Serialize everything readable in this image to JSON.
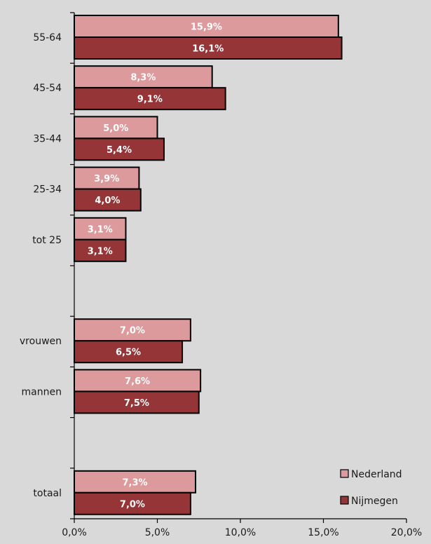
{
  "chart_data": {
    "type": "bar",
    "orientation": "horizontal",
    "categories": [
      "55-64",
      "45-54",
      "35-44",
      "25-34",
      "tot 25",
      "",
      "vrouwen",
      "mannen",
      "",
      "totaal"
    ],
    "series": [
      {
        "name": "Nederland",
        "color": "#dc9a9c",
        "values": [
          15.9,
          8.3,
          5.0,
          3.9,
          3.1,
          null,
          7.0,
          7.6,
          null,
          7.3
        ],
        "labels": [
          "15,9%",
          "8,3%",
          "5,0%",
          "3,9%",
          "3,1%",
          "",
          "7,0%",
          "7,6%",
          "",
          "7,3%"
        ]
      },
      {
        "name": "Nijmegen",
        "color": "#953537",
        "values": [
          16.1,
          9.1,
          5.4,
          4.0,
          3.1,
          null,
          6.5,
          7.5,
          null,
          7.0
        ],
        "labels": [
          "16,1%",
          "9,1%",
          "5,4%",
          "4,0%",
          "3,1%",
          "",
          "6,5%",
          "7,5%",
          "",
          "7,0%"
        ]
      }
    ],
    "xlim": [
      0,
      20
    ],
    "xticks": [
      0,
      5,
      10,
      15,
      20
    ],
    "xtick_labels": [
      "0,0%",
      "5,0%",
      "10,0%",
      "15,0%",
      "20,0%"
    ],
    "grid": false,
    "legend_position": "bottom-right",
    "background_color": "#d9d9d9"
  }
}
